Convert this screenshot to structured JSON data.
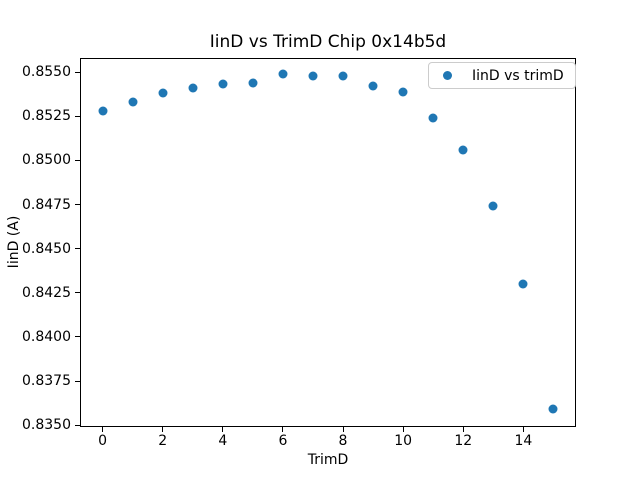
{
  "chart_data": {
    "type": "scatter",
    "title": "IinD vs TrimD Chip 0x14b5d",
    "xlabel": "TrimD",
    "ylabel": "IinD (A)",
    "series": [
      {
        "name": "IinD vs trimD",
        "color": "#1f77b4",
        "x": [
          0,
          1,
          2,
          3,
          4,
          5,
          6,
          7,
          8,
          9,
          10,
          11,
          12,
          13,
          14,
          15
        ],
        "y": [
          0.8528,
          0.8533,
          0.8538,
          0.8541,
          0.8543,
          0.8544,
          0.8549,
          0.8548,
          0.8548,
          0.8542,
          0.8539,
          0.8524,
          0.8506,
          0.8474,
          0.843,
          0.8359
        ]
      }
    ],
    "xlim": [
      -0.75,
      15.75
    ],
    "ylim": [
      0.8349,
      0.8558
    ],
    "xticks": [
      0,
      2,
      4,
      6,
      8,
      10,
      12,
      14
    ],
    "xtick_labels": [
      "0",
      "2",
      "4",
      "6",
      "8",
      "10",
      "12",
      "14"
    ],
    "yticks": [
      0.835,
      0.8375,
      0.84,
      0.8425,
      0.845,
      0.8475,
      0.85,
      0.8525,
      0.855
    ],
    "ytick_labels": [
      "0.8350",
      "0.8375",
      "0.8400",
      "0.8425",
      "0.8450",
      "0.8475",
      "0.8500",
      "0.8525",
      "0.8550"
    ],
    "grid": false,
    "legend": {
      "position": "upper-right",
      "entries": [
        "IinD vs trimD"
      ]
    },
    "background": "#ffffff",
    "text_color": "#000000"
  }
}
